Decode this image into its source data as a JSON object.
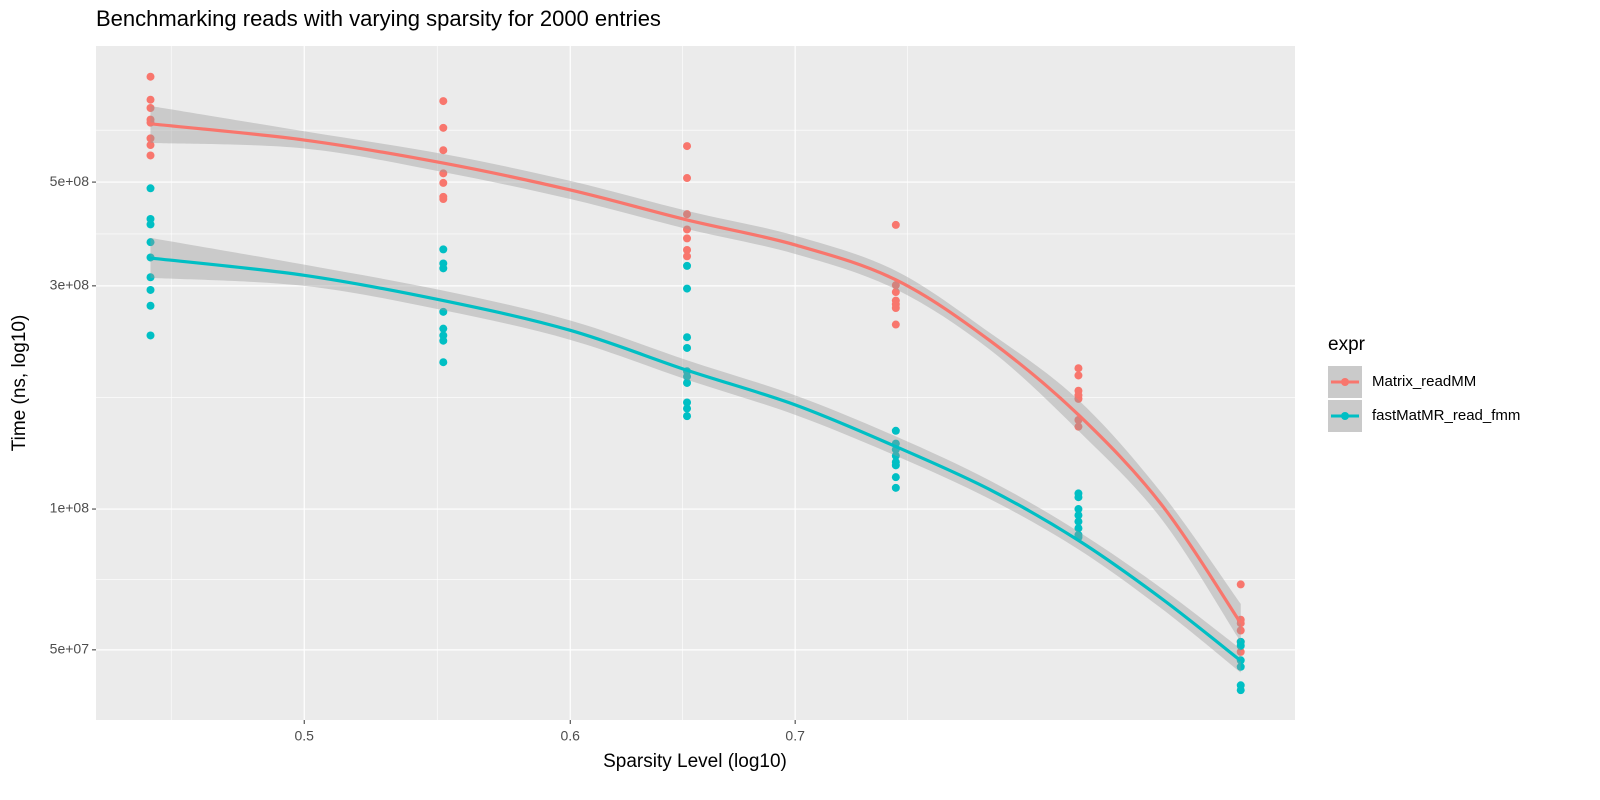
{
  "chart_data": {
    "type": "scatter",
    "title": "Benchmarking reads with varying sparsity for 2000 entries",
    "x_label": "Sparsity Level (log10)",
    "y_label": "Time (ns, log10)",
    "legend_title": "expr",
    "legend_position": "right",
    "x_log": true,
    "y_log": true,
    "grid": true,
    "xlim": [
      0.4335,
      0.986
    ],
    "ylim": [
      35400000,
      977000000
    ],
    "xticks": [
      0.5,
      0.6,
      0.7
    ],
    "yticks": [
      {
        "value": 50000000,
        "label": "5e+07"
      },
      {
        "value": 100000000,
        "label": "1e+08"
      },
      {
        "value": 300000000,
        "label": "3e+08"
      },
      {
        "value": 500000000,
        "label": "5e+08"
      }
    ],
    "series": [
      {
        "name": "Matrix_readMM",
        "color": "#F8766D",
        "x": [
          0.45,
          0.45,
          0.45,
          0.45,
          0.45,
          0.45,
          0.45,
          0.45,
          0.55,
          0.55,
          0.55,
          0.55,
          0.55,
          0.55,
          0.55,
          0.65,
          0.65,
          0.65,
          0.65,
          0.65,
          0.65,
          0.65,
          0.75,
          0.75,
          0.75,
          0.75,
          0.75,
          0.75,
          0.75,
          0.85,
          0.85,
          0.85,
          0.85,
          0.85,
          0.85,
          0.85,
          0.95,
          0.95,
          0.95,
          0.95,
          0.95,
          0.95
        ],
        "values": [
          840000000,
          750000000,
          720000000,
          680000000,
          670000000,
          620000000,
          600000000,
          570000000,
          745000000,
          653000000,
          585000000,
          522000000,
          498000000,
          465000000,
          460000000,
          597000000,
          510000000,
          427000000,
          396000000,
          379000000,
          358000000,
          347000000,
          405000000,
          301000000,
          291000000,
          279000000,
          274000000,
          269000000,
          248000000,
          200000000,
          193000000,
          179000000,
          175000000,
          172000000,
          155000000,
          150000000,
          69000000,
          58000000,
          57000000,
          55000000,
          52000000,
          49500000
        ],
        "smooth": {
          "x": [
            0.45,
            0.5,
            0.55,
            0.6,
            0.65,
            0.7,
            0.75,
            0.8,
            0.85,
            0.9,
            0.95
          ],
          "fit": [
            666000000,
            615000000,
            549000000,
            481000000,
            415000000,
            367000000,
            309000000,
            229000000,
            159000000,
            102000000,
            57000000
          ],
          "lower": [
            606000000,
            590000000,
            525000000,
            460000000,
            397000000,
            351000000,
            295000000,
            219000000,
            147000000,
            95000000,
            52000000
          ],
          "upper": [
            727000000,
            642000000,
            574000000,
            503000000,
            434000000,
            384000000,
            323000000,
            238000000,
            171000000,
            108000000,
            62700000
          ]
        }
      },
      {
        "name": "fastMatMR_read_fmm",
        "color": "#00BFC4",
        "x": [
          0.45,
          0.45,
          0.45,
          0.45,
          0.45,
          0.45,
          0.45,
          0.45,
          0.45,
          0.55,
          0.55,
          0.55,
          0.55,
          0.55,
          0.55,
          0.55,
          0.55,
          0.65,
          0.65,
          0.65,
          0.65,
          0.65,
          0.65,
          0.65,
          0.65,
          0.65,
          0.65,
          0.75,
          0.75,
          0.75,
          0.75,
          0.75,
          0.75,
          0.75,
          0.75,
          0.85,
          0.85,
          0.85,
          0.85,
          0.85,
          0.85,
          0.85,
          0.85,
          0.95,
          0.95,
          0.95,
          0.95,
          0.95,
          0.95
        ],
        "values": [
          485000000,
          417000000,
          406000000,
          372000000,
          345000000,
          313000000,
          294000000,
          272000000,
          235000000,
          359000000,
          335000000,
          327000000,
          264000000,
          243000000,
          235000000,
          229000000,
          206000000,
          331000000,
          296000000,
          233000000,
          221000000,
          197000000,
          192000000,
          186000000,
          169000000,
          164000000,
          158000000,
          147000000,
          138000000,
          134000000,
          130000000,
          126000000,
          124000000,
          117000000,
          111000000,
          108000000,
          106000000,
          100000000,
          97000000,
          94000000,
          91000000,
          88000000,
          87000000,
          52000000,
          51000000,
          47500000,
          46000000,
          42000000,
          41000000
        ],
        "smooth": {
          "x": [
            0.45,
            0.5,
            0.55,
            0.6,
            0.65,
            0.7,
            0.75,
            0.8,
            0.85,
            0.9,
            0.95
          ],
          "fit": [
            344000000,
            316000000,
            279000000,
            241000000,
            198000000,
            167000000,
            136000000,
            110000000,
            85700000,
            64300000,
            47400000
          ],
          "lower": [
            312000000,
            300000000,
            266000000,
            230000000,
            189000000,
            159000000,
            130000000,
            105000000,
            82000000,
            61200000,
            44700000
          ],
          "upper": [
            380000000,
            333000000,
            293000000,
            253000000,
            208000000,
            175000000,
            143000000,
            115000000,
            89500000,
            67600000,
            50200000
          ]
        }
      }
    ]
  }
}
